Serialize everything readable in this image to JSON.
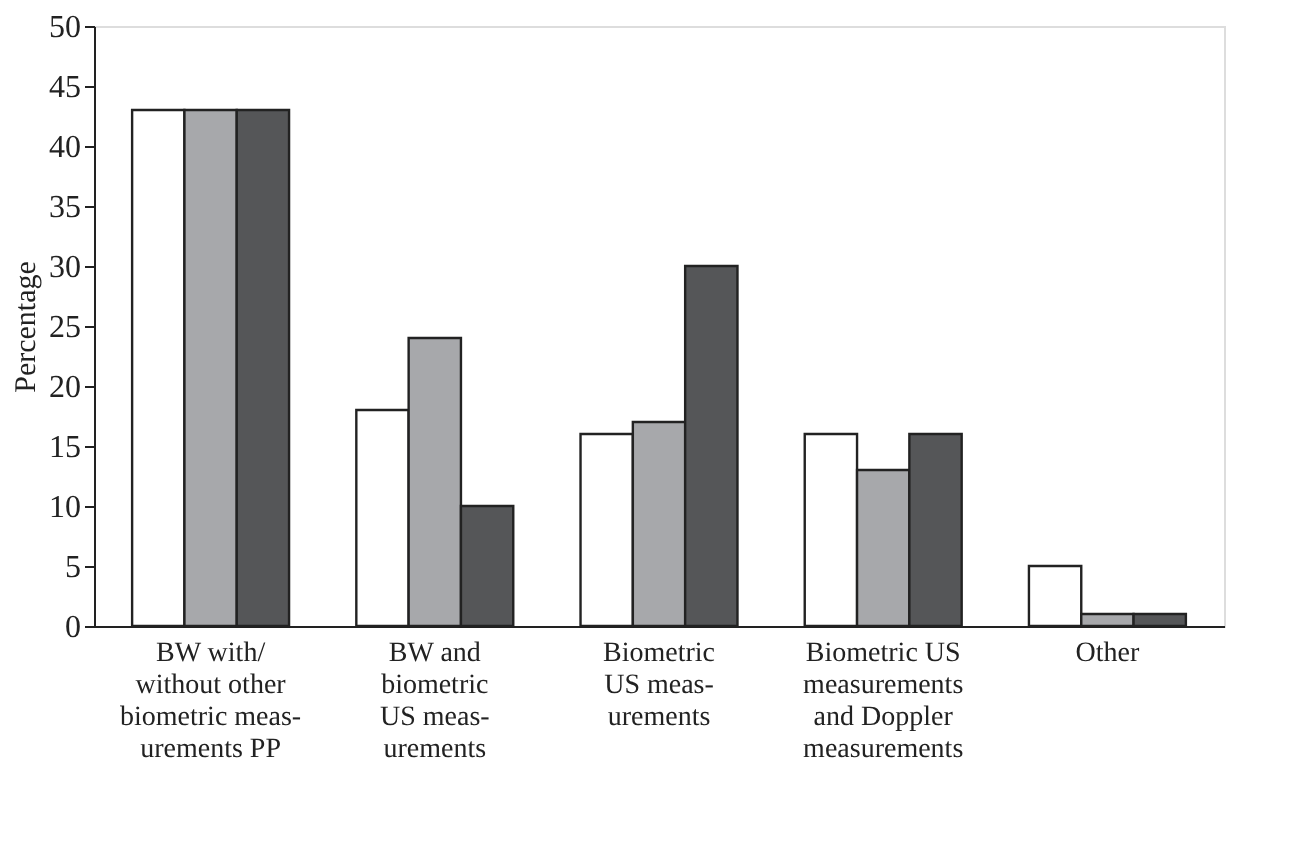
{
  "chart_data": {
    "type": "bar",
    "ylabel": "Percentage",
    "categories": [
      "BW with/\nwithout other\nbiometric meas-\nurements PP",
      "BW and\nbiometric\nUS meas-\nurements",
      "Biometric\nUS meas-\nurements",
      "Biometric US\nmeasurements\nand Doppler\nmeasurements",
      "Other"
    ],
    "series": [
      {
        "color": "#ffffff",
        "values": [
          43,
          18,
          16,
          16,
          5
        ]
      },
      {
        "color": "#a7a8ab",
        "values": [
          43,
          24,
          17,
          13,
          1
        ]
      },
      {
        "color": "#555658",
        "values": [
          43,
          10,
          30,
          16,
          1
        ]
      }
    ],
    "ylim": [
      0,
      50
    ],
    "yticks": [
      0,
      5,
      10,
      15,
      20,
      25,
      30,
      35,
      40,
      45,
      50
    ],
    "grid": false,
    "legend": false
  }
}
